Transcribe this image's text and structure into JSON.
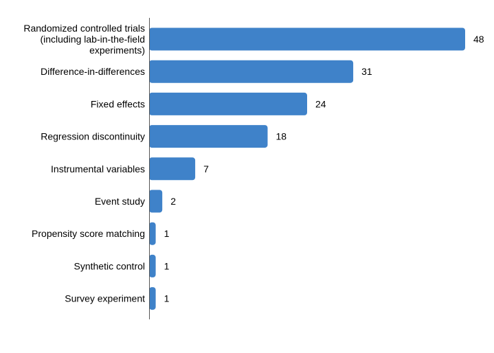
{
  "chart_data": {
    "type": "bar",
    "orientation": "horizontal",
    "title": "",
    "xlabel": "",
    "ylabel": "",
    "categories": [
      [
        "Randomized controlled trials",
        "(including lab-in-the-field",
        "experiments)"
      ],
      [
        "Difference-in-differences"
      ],
      [
        "Fixed effects"
      ],
      [
        "Regression discontinuity"
      ],
      [
        "Instrumental variables"
      ],
      [
        "Event study"
      ],
      [
        "Propensity score matching"
      ],
      [
        "Synthetic control"
      ],
      [
        "Survey experiment"
      ]
    ],
    "values": [
      48,
      31,
      24,
      18,
      7,
      2,
      1,
      1,
      1
    ],
    "xlim": [
      0,
      48
    ],
    "grid": false,
    "legend": "none",
    "bar_color": "#3f82c9",
    "axis_color": "#555555"
  }
}
